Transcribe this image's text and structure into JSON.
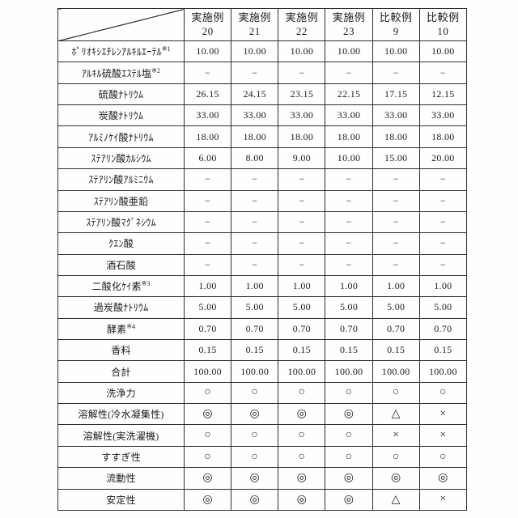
{
  "table": {
    "columns": [
      {
        "line1": "実施例",
        "line2": "20"
      },
      {
        "line1": "実施例",
        "line2": "21"
      },
      {
        "line1": "実施例",
        "line2": "22"
      },
      {
        "line1": "実施例",
        "line2": "23"
      },
      {
        "line1": "比較例",
        "line2": "9"
      },
      {
        "line1": "比較例",
        "line2": "10"
      }
    ],
    "rows": [
      {
        "kind": "value",
        "label": "ﾎﾟﾘｵｷｼｴﾁﾚﾝｱﾙｷﾙｴｰﾃﾙ",
        "sup": "※1",
        "values": [
          "10.00",
          "10.00",
          "10.00",
          "10.00",
          "10.00",
          "10.00"
        ]
      },
      {
        "kind": "value",
        "label": "ｱﾙｷﾙ硫酸ｴｽﾃﾙ塩",
        "sup": "※2",
        "values": [
          "−",
          "−",
          "−",
          "−",
          "−",
          "−"
        ]
      },
      {
        "kind": "value",
        "label": "硫酸ﾅﾄﾘｳﾑ",
        "sup": "",
        "values": [
          "26.15",
          "24.15",
          "23.15",
          "22.15",
          "17.15",
          "12.15"
        ]
      },
      {
        "kind": "value",
        "label": "炭酸ﾅﾄﾘｳﾑ",
        "sup": "",
        "values": [
          "33.00",
          "33.00",
          "33.00",
          "33.00",
          "33.00",
          "33.00"
        ]
      },
      {
        "kind": "value",
        "label": "ｱﾙﾐﾉｹｲ酸ﾅﾄﾘｳﾑ",
        "sup": "",
        "values": [
          "18.00",
          "18.00",
          "18.00",
          "18.00",
          "18.00",
          "18.00"
        ]
      },
      {
        "kind": "value",
        "label": "ｽﾃｱﾘﾝ酸ｶﾙｼｳﾑ",
        "sup": "",
        "values": [
          "6.00",
          "8.00",
          "9.00",
          "10.00",
          "15.00",
          "20.00"
        ]
      },
      {
        "kind": "value",
        "label": "ｽﾃｱﾘﾝ酸ｱﾙﾐﾆｳﾑ",
        "sup": "",
        "values": [
          "−",
          "−",
          "−",
          "−",
          "−",
          "−"
        ]
      },
      {
        "kind": "value",
        "label": "ｽﾃｱﾘﾝ酸亜鉛",
        "sup": "",
        "values": [
          "−",
          "−",
          "−",
          "−",
          "−",
          "−"
        ]
      },
      {
        "kind": "value",
        "label": "ｽﾃｱﾘﾝ酸ﾏｸﾞﾈｼｳﾑ",
        "sup": "",
        "values": [
          "−",
          "−",
          "−",
          "−",
          "−",
          "−"
        ]
      },
      {
        "kind": "value",
        "label": "ｸｴﾝ酸",
        "sup": "",
        "values": [
          "−",
          "−",
          "−",
          "−",
          "−",
          "−"
        ]
      },
      {
        "kind": "value",
        "label": "酒石酸",
        "sup": "",
        "values": [
          "−",
          "−",
          "−",
          "−",
          "−",
          "−"
        ]
      },
      {
        "kind": "value",
        "label": "二酸化ｹｲ素",
        "sup": "※3",
        "values": [
          "1.00",
          "1.00",
          "1.00",
          "1.00",
          "1.00",
          "1.00"
        ]
      },
      {
        "kind": "value",
        "label": "過炭酸ﾅﾄﾘｳﾑ",
        "sup": "",
        "values": [
          "5.00",
          "5.00",
          "5.00",
          "5.00",
          "5.00",
          "5.00"
        ]
      },
      {
        "kind": "value",
        "label": "酵素",
        "sup": "※4",
        "values": [
          "0.70",
          "0.70",
          "0.70",
          "0.70",
          "0.70",
          "0.70"
        ]
      },
      {
        "kind": "value",
        "label": "香料",
        "sup": "",
        "values": [
          "0.15",
          "0.15",
          "0.15",
          "0.15",
          "0.15",
          "0.15"
        ]
      },
      {
        "kind": "value",
        "label": "合計",
        "sup": "",
        "values": [
          "100.00",
          "100.00",
          "100.00",
          "100.00",
          "100.00",
          "100.00"
        ]
      },
      {
        "kind": "symbol",
        "label": "洗浄力",
        "sup": "",
        "values": [
          "○",
          "○",
          "○",
          "○",
          "○",
          "○"
        ]
      },
      {
        "kind": "symbol",
        "label": "溶解性(冷水凝集性)",
        "sup": "",
        "values": [
          "◎",
          "◎",
          "◎",
          "◎",
          "△",
          "×"
        ]
      },
      {
        "kind": "symbol",
        "label": "溶解性(実洗濯機)",
        "sup": "",
        "values": [
          "○",
          "○",
          "○",
          "○",
          "×",
          "×"
        ]
      },
      {
        "kind": "symbol",
        "label": "すすぎ性",
        "sup": "",
        "values": [
          "○",
          "○",
          "○",
          "○",
          "○",
          "○"
        ]
      },
      {
        "kind": "symbol",
        "label": "流動性",
        "sup": "",
        "values": [
          "◎",
          "◎",
          "◎",
          "◎",
          "◎",
          "◎"
        ]
      },
      {
        "kind": "symbol",
        "label": "安定性",
        "sup": "",
        "values": [
          "◎",
          "◎",
          "◎",
          "◎",
          "△",
          "×"
        ]
      }
    ]
  }
}
